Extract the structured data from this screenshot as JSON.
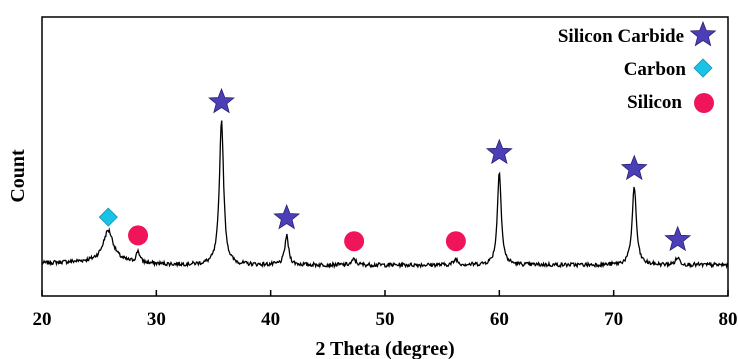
{
  "chart_data": {
    "type": "line",
    "title": "",
    "xlabel": "2 Theta (degree)",
    "ylabel": "Count",
    "xlim": [
      20,
      80
    ],
    "x_ticks": [
      20,
      30,
      40,
      50,
      60,
      70,
      80
    ],
    "grid": false,
    "legend_position": "top-right",
    "colors": {
      "line": "#000000",
      "silicon_carbide": "#4B3FB8",
      "carbon": "#19C3E6",
      "silicon": "#F0145A"
    },
    "legend": [
      {
        "label": "Silicon Carbide",
        "marker": "star"
      },
      {
        "label": "Carbon",
        "marker": "diamond"
      },
      {
        "label": "Silicon",
        "marker": "circle"
      }
    ],
    "peaks": [
      {
        "x": 25.8,
        "height": 0.22,
        "width": 0.55,
        "phase": "carbon"
      },
      {
        "x": 28.4,
        "height": 0.08,
        "width": 0.18,
        "phase": "silicon"
      },
      {
        "x": 35.7,
        "height": 1.0,
        "width": 0.22,
        "phase": "silicon_carbide"
      },
      {
        "x": 41.4,
        "height": 0.2,
        "width": 0.2,
        "phase": "silicon_carbide"
      },
      {
        "x": 47.3,
        "height": 0.04,
        "width": 0.2,
        "phase": "silicon"
      },
      {
        "x": 56.2,
        "height": 0.04,
        "width": 0.2,
        "phase": "silicon"
      },
      {
        "x": 60.0,
        "height": 0.65,
        "width": 0.2,
        "phase": "silicon_carbide"
      },
      {
        "x": 71.8,
        "height": 0.54,
        "width": 0.22,
        "phase": "silicon_carbide"
      },
      {
        "x": 75.6,
        "height": 0.05,
        "width": 0.22,
        "phase": "silicon_carbide"
      }
    ],
    "markers": [
      {
        "x": 25.8,
        "phase": "carbon",
        "marker": "diamond"
      },
      {
        "x": 28.4,
        "phase": "silicon",
        "marker": "circle"
      },
      {
        "x": 35.7,
        "phase": "silicon_carbide",
        "marker": "star"
      },
      {
        "x": 41.4,
        "phase": "silicon_carbide",
        "marker": "star"
      },
      {
        "x": 47.3,
        "phase": "silicon",
        "marker": "circle"
      },
      {
        "x": 56.2,
        "phase": "silicon",
        "marker": "circle"
      },
      {
        "x": 60.0,
        "phase": "silicon_carbide",
        "marker": "star"
      },
      {
        "x": 71.8,
        "phase": "silicon_carbide",
        "marker": "star"
      },
      {
        "x": 75.6,
        "phase": "silicon_carbide",
        "marker": "star"
      }
    ]
  }
}
